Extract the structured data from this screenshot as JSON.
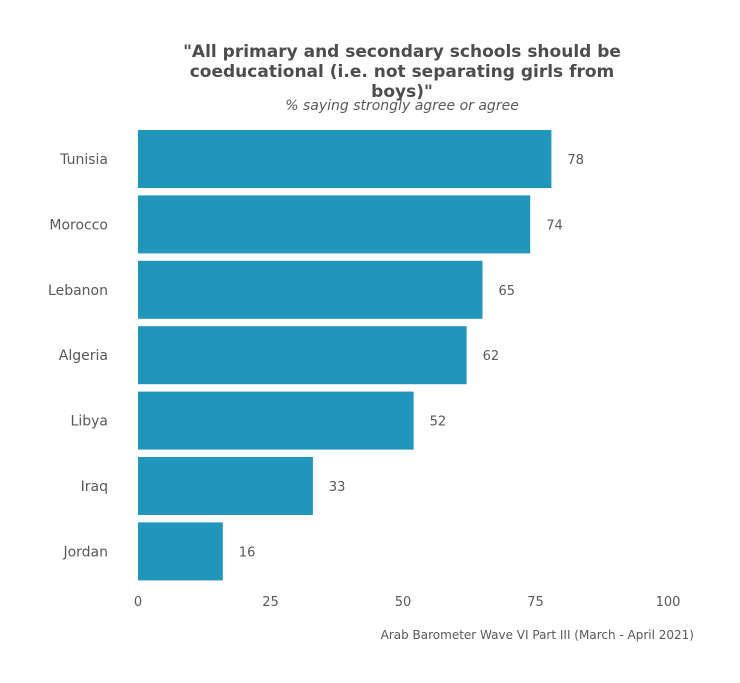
{
  "chart_data": {
    "type": "bar",
    "orientation": "horizontal",
    "title": "\"All primary and secondary schools should be coeducational (i.e. not separating girls from boys)\"",
    "subtitle": "% saying strongly agree or agree",
    "caption": "Arab Barometer Wave VI Part III (March - April 2021)",
    "categories": [
      "Tunisia",
      "Morocco",
      "Lebanon",
      "Algeria",
      "Libya",
      "Iraq",
      "Jordan"
    ],
    "values": [
      78,
      74,
      65,
      62,
      52,
      33,
      16
    ],
    "value_labels": [
      "78",
      "74",
      "65",
      "62",
      "52",
      "33",
      "16"
    ],
    "xlim": [
      0,
      100
    ],
    "xticks": [
      0,
      25,
      50,
      75,
      100
    ],
    "xtick_labels": [
      "0",
      "25",
      "50",
      "75",
      "100"
    ],
    "grid": false,
    "legend": "none",
    "bar_color": "#2196bd",
    "text_color": "#595959"
  }
}
